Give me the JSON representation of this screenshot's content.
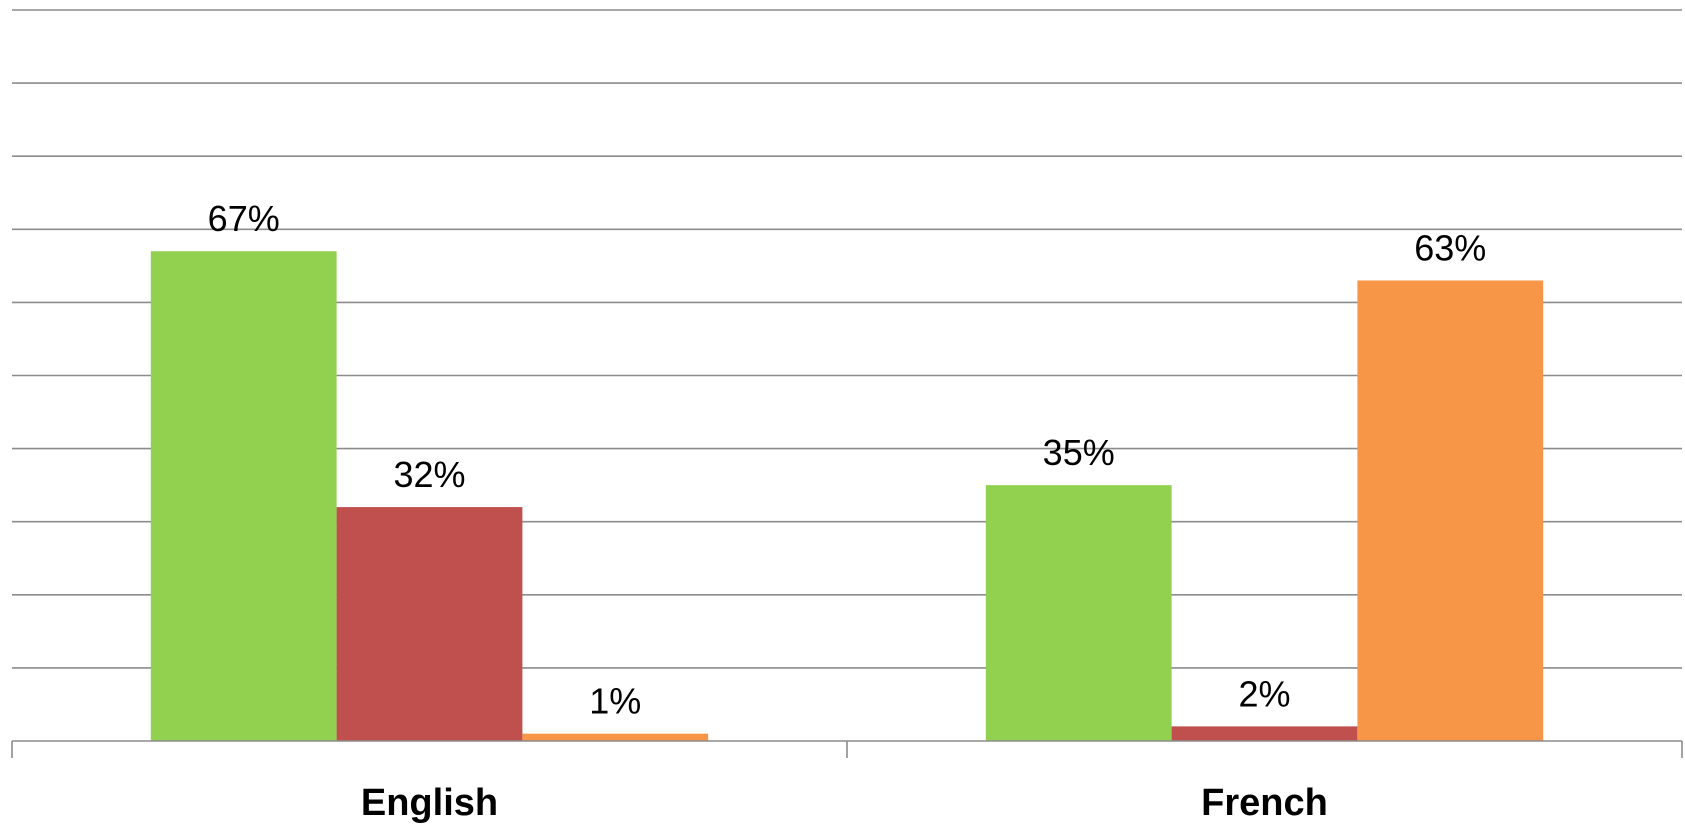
{
  "chart_data": {
    "type": "bar",
    "categories": [
      "English",
      "French"
    ],
    "series": [
      {
        "values": [
          67,
          35
        ],
        "color": "#92d050"
      },
      {
        "values": [
          32,
          2
        ],
        "color": "#c0504d"
      },
      {
        "values": [
          1,
          63
        ],
        "color": "#f79646"
      }
    ],
    "data_labels": [
      [
        "67%",
        "35%"
      ],
      [
        "32%",
        "2%"
      ],
      [
        "1%",
        "63%"
      ]
    ],
    "ylim": [
      0,
      100
    ],
    "y_gridline_step": 10,
    "grid": true,
    "legend": "none",
    "title": "",
    "xlabel": "",
    "ylabel": ""
  }
}
